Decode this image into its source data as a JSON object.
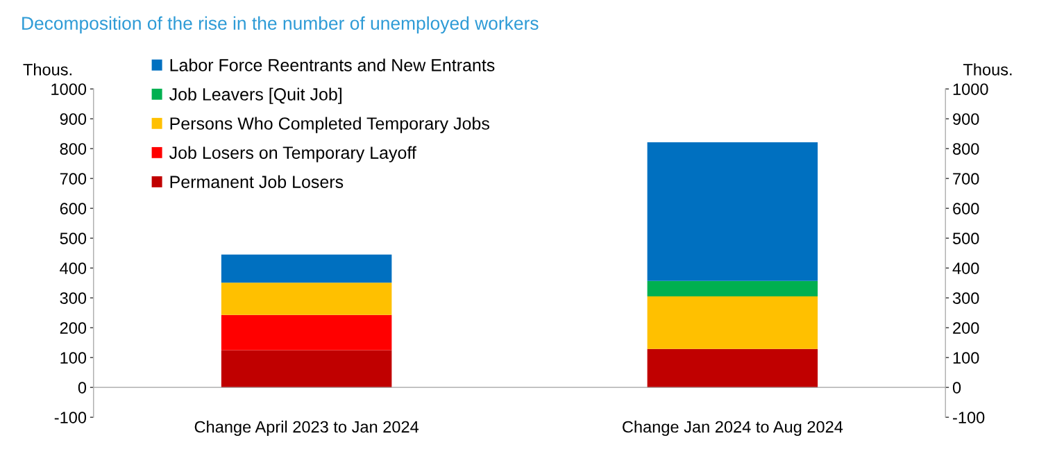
{
  "chart_data": {
    "type": "bar",
    "stacked": true,
    "title": "Decomposition of the rise in the number of unemployed workers",
    "ylabel": "Thous.",
    "y2label": "Thous.",
    "categories": [
      "Change April 2023 to Jan 2024",
      "Change Jan 2024 to Aug 2024"
    ],
    "series": [
      {
        "name": "Permanent Job Losers",
        "color": "#c00000",
        "values": [
          125,
          129
        ]
      },
      {
        "name": "Job Losers on Temporary Layoff",
        "color": "#ff0000",
        "values": [
          118,
          0
        ]
      },
      {
        "name": "Persons Who Completed Temporary Jobs",
        "color": "#ffc000",
        "values": [
          108,
          176
        ]
      },
      {
        "name": "Job Leavers [Quit Job]",
        "color": "#00b050",
        "values": [
          0,
          52
        ]
      },
      {
        "name": "Labor Force Reentrants and New Entrants",
        "color": "#0070c0",
        "values": [
          94,
          464
        ]
      }
    ],
    "ylim": [
      -100,
      1000
    ],
    "yticks": [
      -100,
      0,
      100,
      200,
      300,
      400,
      500,
      600,
      700,
      800,
      900,
      1000
    ],
    "y2lim": [
      -100,
      1000
    ],
    "y2ticks": [
      -100,
      0,
      100,
      200,
      300,
      400,
      500,
      600,
      700,
      800,
      900,
      1000
    ],
    "legend": "top left",
    "grid": false
  }
}
